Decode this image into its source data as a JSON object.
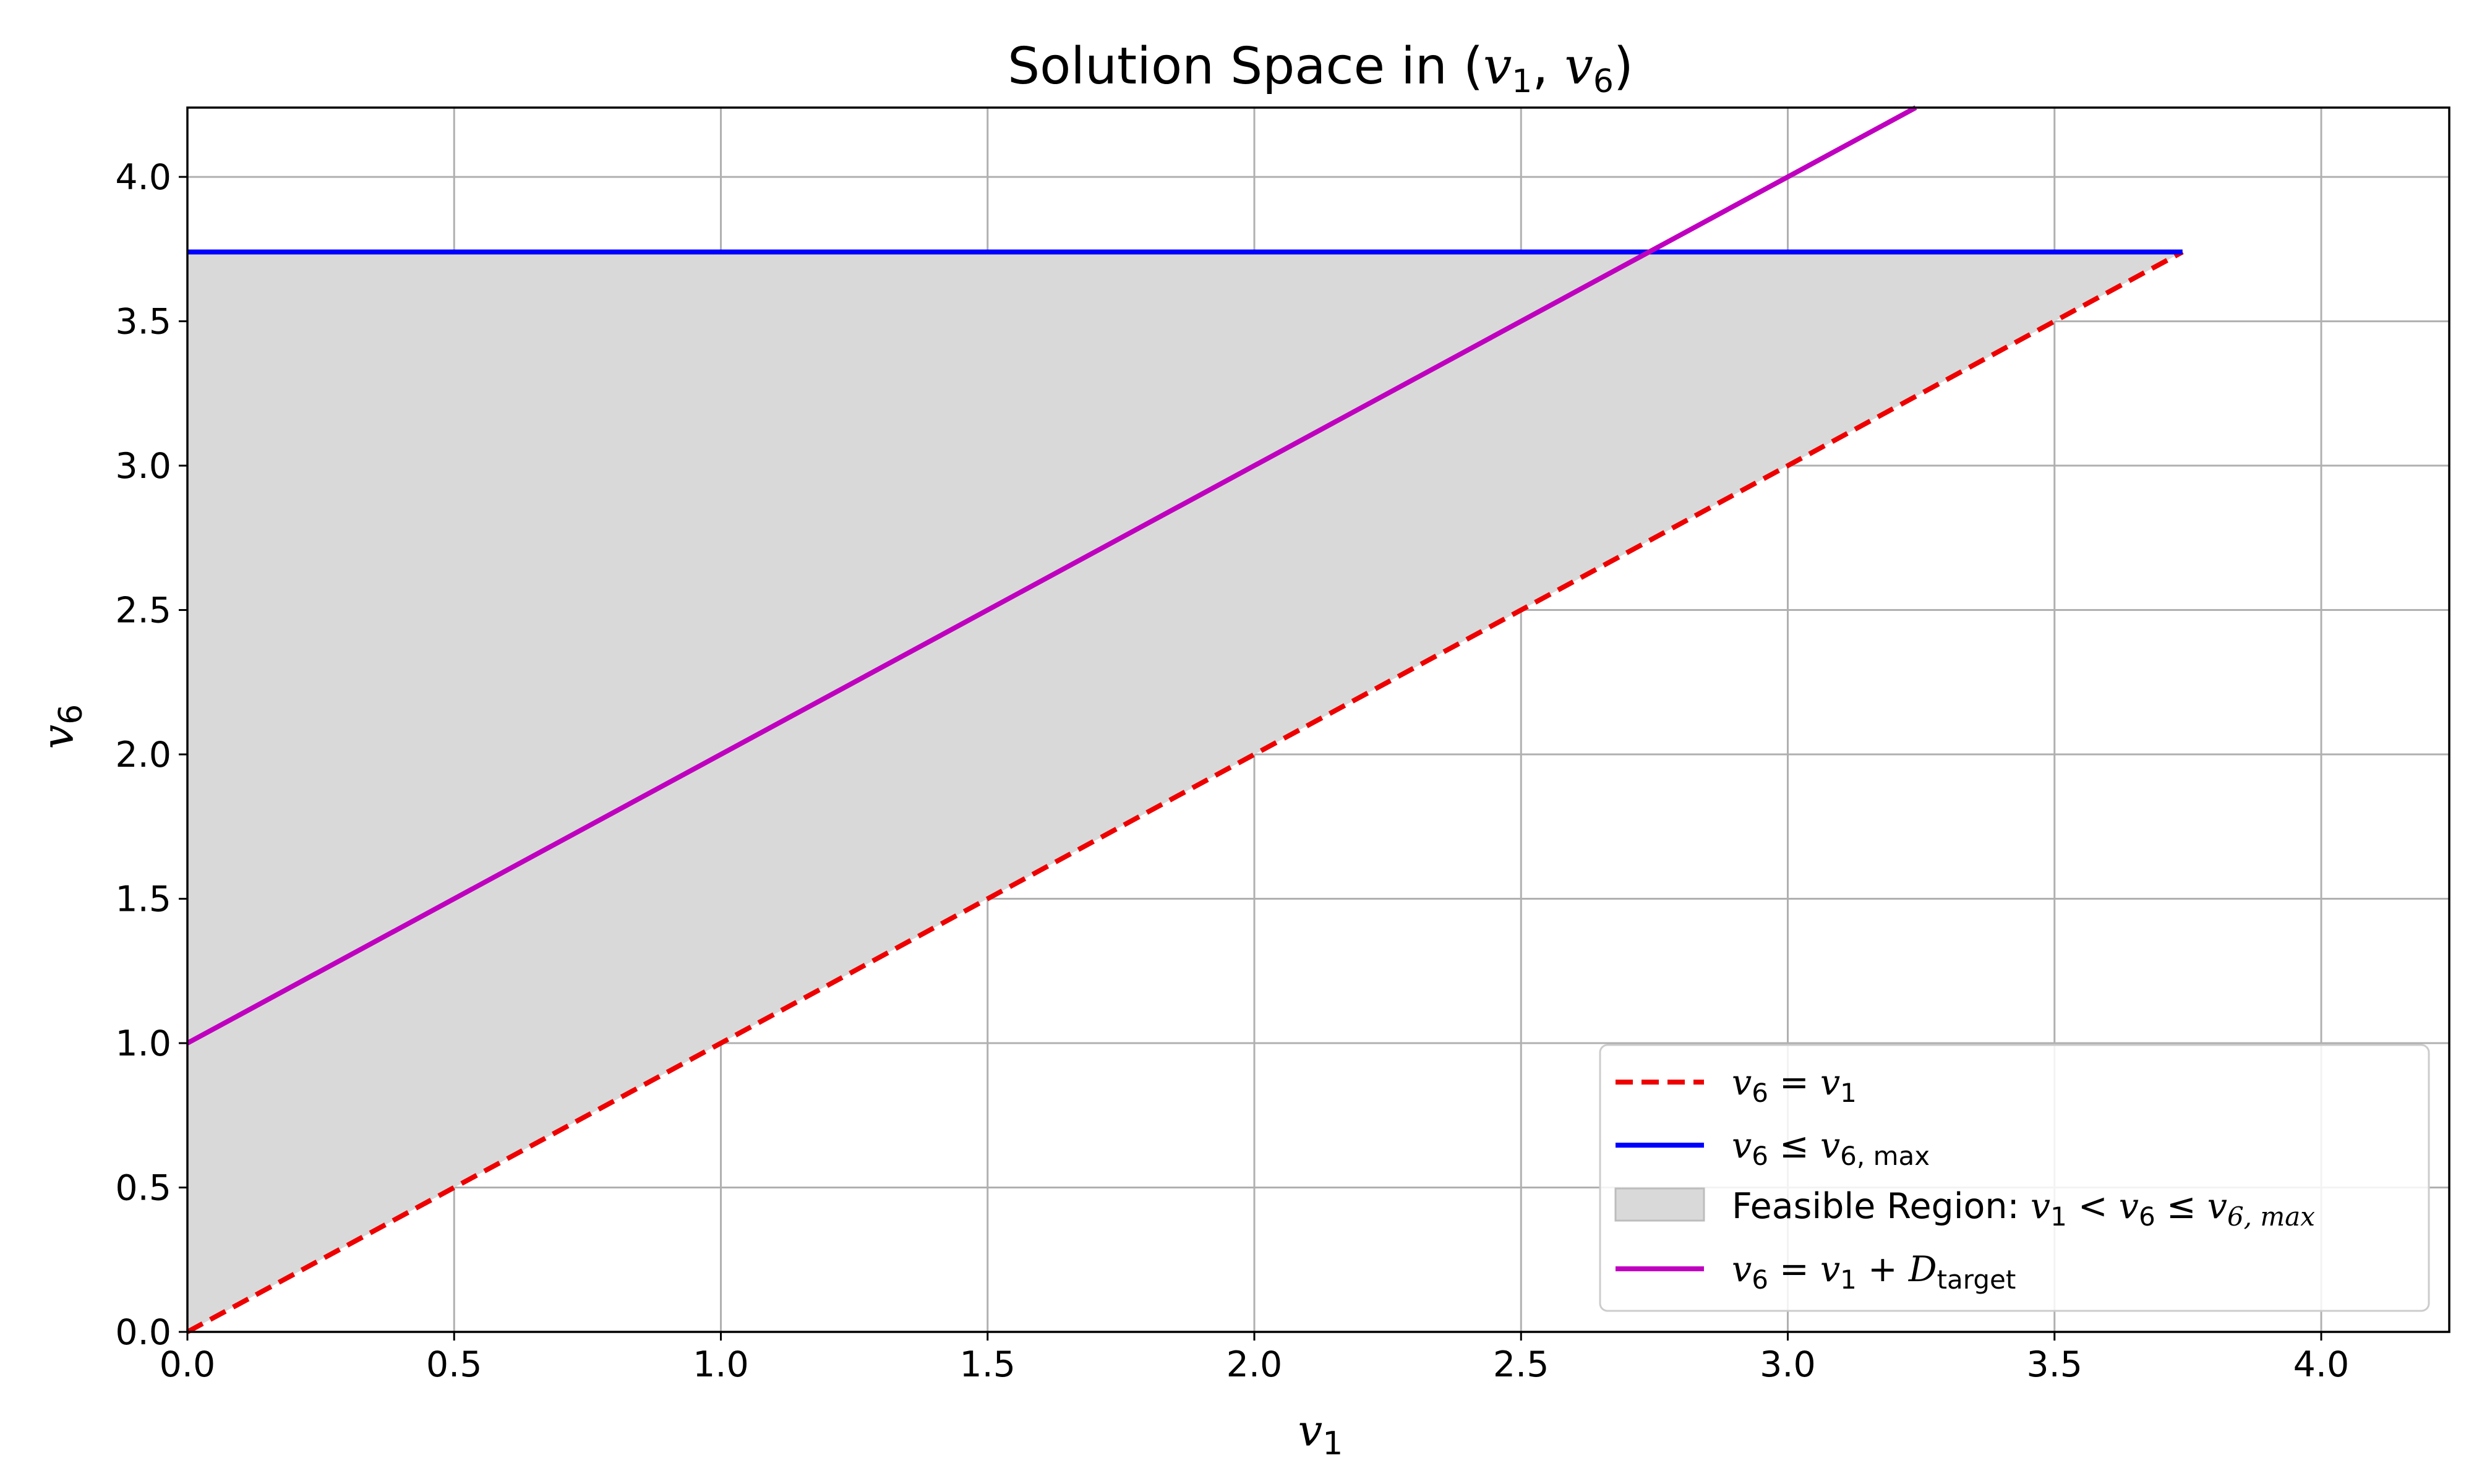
{
  "chart_data": {
    "type": "line",
    "title": "Solution Space in (v1, v6)",
    "xlabel": "v1",
    "ylabel": "v6",
    "xlim": [
      0,
      4.24
    ],
    "ylim": [
      0,
      4.24
    ],
    "x_ticks": [
      "0.0",
      "0.5",
      "1.0",
      "1.5",
      "2.0",
      "2.5",
      "3.0",
      "3.5",
      "4.0"
    ],
    "y_ticks": [
      "0.0",
      "0.5",
      "1.0",
      "1.5",
      "2.0",
      "2.5",
      "3.0",
      "3.5",
      "4.0"
    ],
    "grid": true,
    "legend_position": "lower-right",
    "series": [
      {
        "name": "v6 = v1",
        "style": "dashed",
        "color": "#ee0000",
        "x": [
          0,
          3.74
        ],
        "y": [
          0,
          3.74
        ]
      },
      {
        "name": "v6 ≤ v6,max",
        "style": "solid",
        "color": "#0000ff",
        "x": [
          0,
          3.74
        ],
        "y": [
          3.74,
          3.74
        ]
      },
      {
        "name": "v6 = v1 + Dtarget",
        "style": "solid",
        "color": "#bf00bf",
        "x": [
          0,
          3.24
        ],
        "y": [
          1.0,
          4.24
        ]
      }
    ],
    "region": {
      "name": "Feasible Region: v1 < v6 ≤ v6,max",
      "color": "#d9d9d9",
      "polygon": [
        [
          0,
          0
        ],
        [
          0,
          3.74
        ],
        [
          3.74,
          3.74
        ]
      ]
    }
  }
}
